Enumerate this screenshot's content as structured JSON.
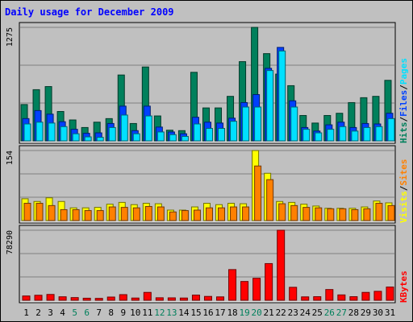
{
  "title": "Daily usage for December 2009",
  "colors": {
    "hits": "#00805c",
    "files": "#0040ff",
    "pages": "#00e0ff",
    "visits": "#ffff00",
    "sites": "#ff8000",
    "kbytes": "#ff0000",
    "title": "#0000ff",
    "panel": "#c0c0c0",
    "weekend_label": "#00805c"
  },
  "chart_data": [
    {
      "type": "bar",
      "panel": "top",
      "max_label": "1275",
      "ylim": [
        0,
        1275
      ],
      "side_legend": [
        {
          "label": "Hits",
          "color_key": "hits"
        },
        {
          "label": "/",
          "color_key": "separator"
        },
        {
          "label": "Files",
          "color_key": "files"
        },
        {
          "label": "/",
          "color_key": "separator"
        },
        {
          "label": "Pages",
          "color_key": "pages"
        }
      ],
      "categories": [
        "1",
        "2",
        "3",
        "4",
        "5",
        "6",
        "7",
        "8",
        "9",
        "10",
        "11",
        "12",
        "13",
        "14",
        "15",
        "16",
        "17",
        "18",
        "19",
        "20",
        "21",
        "22",
        "23",
        "24",
        "25",
        "26",
        "27",
        "28",
        "29",
        "30",
        "31"
      ],
      "series": [
        {
          "name": "Hits",
          "values": [
            408,
            575,
            610,
            330,
            235,
            150,
            210,
            250,
            740,
            195,
            830,
            280,
            120,
            115,
            770,
            370,
            370,
            500,
            890,
            1275,
            980,
            750,
            620,
            285,
            200,
            285,
            310,
            430,
            485,
            500,
            680
          ]
        },
        {
          "name": "Files",
          "values": [
            250,
            340,
            300,
            215,
            130,
            85,
            90,
            195,
            390,
            115,
            390,
            155,
            100,
            80,
            265,
            210,
            200,
            255,
            430,
            520,
            815,
            1050,
            450,
            150,
            110,
            180,
            210,
            150,
            195,
            190,
            310
          ]
        },
        {
          "name": "Pages",
          "values": [
            190,
            210,
            200,
            160,
            80,
            45,
            40,
            150,
            290,
            80,
            280,
            100,
            70,
            50,
            190,
            140,
            140,
            220,
            380,
            380,
            790,
            1010,
            380,
            130,
            90,
            130,
            160,
            110,
            150,
            160,
            250
          ]
        }
      ]
    },
    {
      "type": "bar",
      "panel": "middle",
      "max_label": "154",
      "ylim": [
        0,
        154
      ],
      "side_legend": [
        {
          "label": "Visits",
          "color_key": "visits"
        },
        {
          "label": "/",
          "color_key": "separator"
        },
        {
          "label": "Sites",
          "color_key": "sites"
        }
      ],
      "categories": [
        "1",
        "2",
        "3",
        "4",
        "5",
        "6",
        "7",
        "8",
        "9",
        "10",
        "11",
        "12",
        "13",
        "14",
        "15",
        "16",
        "17",
        "18",
        "19",
        "20",
        "21",
        "22",
        "23",
        "24",
        "25",
        "26",
        "27",
        "28",
        "29",
        "30",
        "31"
      ],
      "series": [
        {
          "name": "Visits",
          "values": [
            48,
            42,
            50,
            42,
            28,
            28,
            29,
            36,
            40,
            35,
            38,
            37,
            23,
            23,
            30,
            38,
            35,
            38,
            37,
            154,
            104,
            42,
            40,
            36,
            32,
            27,
            27,
            27,
            30,
            43,
            39
          ]
        },
        {
          "name": "Sites",
          "values": [
            38,
            38,
            33,
            24,
            24,
            22,
            22,
            30,
            29,
            28,
            31,
            30,
            19,
            22,
            23,
            28,
            28,
            30,
            30,
            120,
            90,
            37,
            33,
            29,
            28,
            26,
            26,
            24,
            26,
            38,
            33
          ]
        }
      ]
    },
    {
      "type": "bar",
      "panel": "bottom",
      "max_label": "78290",
      "ylim": [
        0,
        78290
      ],
      "side_legend": [
        {
          "label": "KBytes",
          "color_key": "kbytes"
        }
      ],
      "categories": [
        "1",
        "2",
        "3",
        "4",
        "5",
        "6",
        "7",
        "8",
        "9",
        "10",
        "11",
        "12",
        "13",
        "14",
        "15",
        "16",
        "17",
        "18",
        "19",
        "20",
        "21",
        "22",
        "23",
        "24",
        "25",
        "26",
        "27",
        "28",
        "29",
        "30",
        "31"
      ],
      "series": [
        {
          "name": "KBytes",
          "values": [
            4800,
            5600,
            6500,
            3900,
            3000,
            2300,
            2100,
            3600,
            6300,
            2500,
            8800,
            2800,
            2700,
            2500,
            5800,
            4300,
            3800,
            34300,
            21000,
            24600,
            41000,
            78290,
            14500,
            3800,
            4000,
            12000,
            6000,
            4000,
            8800,
            10000,
            14800
          ]
        }
      ]
    }
  ],
  "x_labels": [
    {
      "label": "1",
      "weekend": false
    },
    {
      "label": "2",
      "weekend": false
    },
    {
      "label": "3",
      "weekend": false
    },
    {
      "label": "4",
      "weekend": false
    },
    {
      "label": "5",
      "weekend": true
    },
    {
      "label": "6",
      "weekend": true
    },
    {
      "label": "7",
      "weekend": false
    },
    {
      "label": "8",
      "weekend": false
    },
    {
      "label": "9",
      "weekend": false
    },
    {
      "label": "10",
      "weekend": false
    },
    {
      "label": "11",
      "weekend": false
    },
    {
      "label": "12",
      "weekend": true
    },
    {
      "label": "13",
      "weekend": true
    },
    {
      "label": "14",
      "weekend": false
    },
    {
      "label": "15",
      "weekend": false
    },
    {
      "label": "16",
      "weekend": false
    },
    {
      "label": "17",
      "weekend": false
    },
    {
      "label": "18",
      "weekend": false
    },
    {
      "label": "19",
      "weekend": true
    },
    {
      "label": "20",
      "weekend": true
    },
    {
      "label": "21",
      "weekend": false
    },
    {
      "label": "22",
      "weekend": false
    },
    {
      "label": "23",
      "weekend": false
    },
    {
      "label": "24",
      "weekend": false
    },
    {
      "label": "25",
      "weekend": false
    },
    {
      "label": "26",
      "weekend": true
    },
    {
      "label": "27",
      "weekend": true
    },
    {
      "label": "28",
      "weekend": false
    },
    {
      "label": "29",
      "weekend": false
    },
    {
      "label": "30",
      "weekend": false
    },
    {
      "label": "31",
      "weekend": false
    }
  ]
}
